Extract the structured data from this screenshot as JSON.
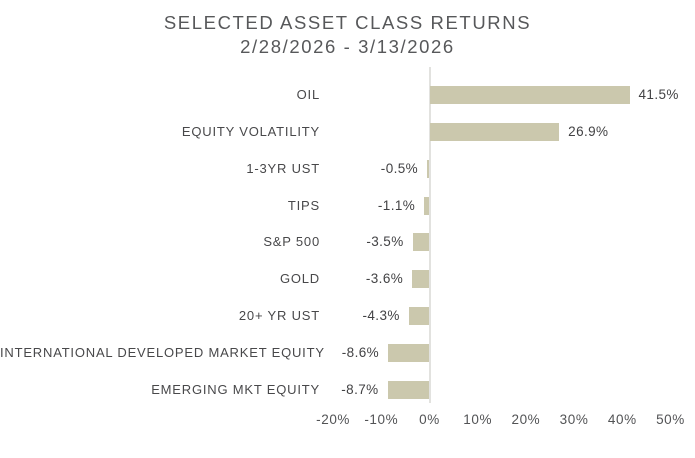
{
  "title": {
    "line1": "SELECTED ASSET CLASS RETURNS",
    "line2": "2/28/2026 - 3/13/2026"
  },
  "chart_data": {
    "type": "bar",
    "orientation": "horizontal",
    "title": "SELECTED ASSET CLASS RETURNS 2/28/2026 - 3/13/2026",
    "categories": [
      "OIL",
      "EQUITY VOLATILITY",
      "1-3YR UST",
      "TIPS",
      "S&P 500",
      "GOLD",
      "20+ YR UST",
      "INTERNATIONAL DEVELOPED MARKET EQUITY",
      "EMERGING MKT EQUITY"
    ],
    "values": [
      41.5,
      26.9,
      -0.5,
      -1.1,
      -3.5,
      -3.6,
      -4.3,
      -8.6,
      -8.7
    ],
    "value_labels": [
      "41.5%",
      "26.9%",
      "-0.5%",
      "-1.1%",
      "-3.5%",
      "-3.6%",
      "-4.3%",
      "-8.6%",
      "-8.7%"
    ],
    "x_axis": {
      "range": [
        -20,
        50
      ],
      "ticks": [
        -20,
        -10,
        0,
        10,
        20,
        30,
        40,
        50
      ],
      "tick_labels": [
        "-20%",
        "-10%",
        "0%",
        "10%",
        "20%",
        "30%",
        "40%",
        "50%"
      ]
    },
    "grid": false,
    "legend": null,
    "colors": {
      "bar": "#cbc8ad",
      "zero_line": "#e2e2df",
      "title_text": "#57585a",
      "label_text": "#48484a",
      "value_text": "#424244",
      "axis_text": "#525355",
      "background": "#ffffff"
    }
  }
}
